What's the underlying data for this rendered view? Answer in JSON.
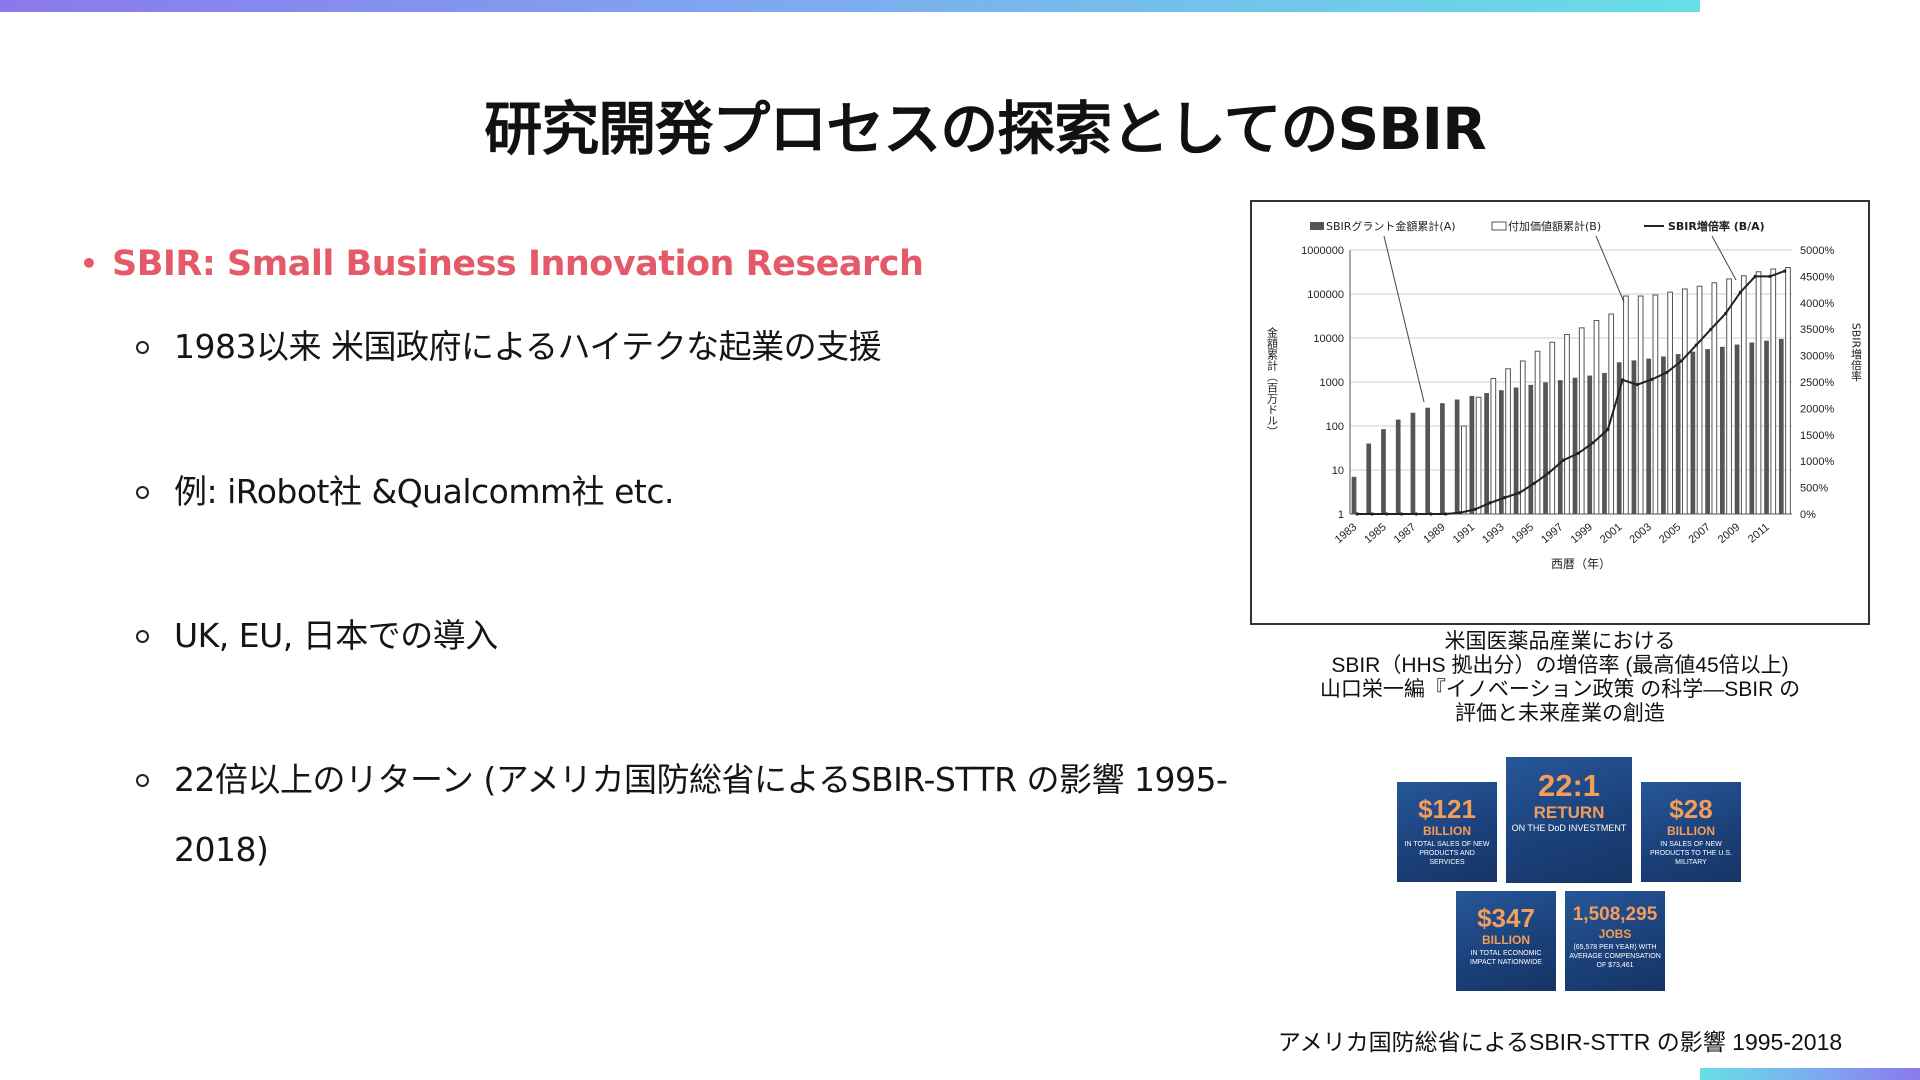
{
  "slide": {
    "title": "研究開発プロセスの探索としてのSBIR",
    "main_bullet": "SBIR: Small Business Innovation Research",
    "sub_bullets": [
      "1983以来 米国政府によるハイテクな起業の支援",
      "例: iRobot社 &Qualcomm社 etc.",
      "UK, EU, 日本での導入",
      "22倍以上のリターン (アメリカ国防総省によるSBIR-STTR の影響 1995-2018)"
    ],
    "caption_chart": [
      "米国医薬品産業における",
      "SBIR（HHS 拠出分）の増倍率 (最高値45倍以上)",
      "山口栄一編『イノベーション政策 の科学—SBIR の",
      "評価と未来産業の創造"
    ],
    "caption_infographic": "アメリカ国防総省によるSBIR-STTR の影響 1995-2018",
    "colors": {
      "accent": "#e55a68",
      "tile_blue": "#1f4a8a",
      "tile_orange": "#f29d5b"
    }
  },
  "infographic": {
    "tiles": [
      {
        "big": "$121",
        "unit": "BILLION",
        "desc": "IN TOTAL SALES OF NEW PRODUCTS AND SERVICES"
      },
      {
        "big": "22:1",
        "unit": "RETURN",
        "desc": "ON THE DoD INVESTMENT"
      },
      {
        "big": "$28",
        "unit": "BILLION",
        "desc": "IN SALES OF NEW PRODUCTS TO THE U.S. MILITARY"
      },
      {
        "big": "$347",
        "unit": "BILLION",
        "desc": "IN TOTAL ECONOMIC IMPACT NATIONWIDE"
      },
      {
        "big": "1,508,295",
        "unit": "JOBS",
        "desc": "(65,578 PER YEAR) WITH AVERAGE COMPENSATION OF $73,461"
      }
    ]
  },
  "chart_data": {
    "type": "bar",
    "title": "",
    "legend": [
      "SBIRグラント金額累計(A)",
      "付加価値額累計(B)",
      "SBIR増倍率 (B/A)"
    ],
    "legend_position": "top",
    "xlabel": "西暦（年）",
    "ylabel_left": "金額累計（百万ドル）",
    "ylabel_right": "SBIR増倍率",
    "x": [
      1983,
      1984,
      1985,
      1986,
      1987,
      1988,
      1989,
      1990,
      1991,
      1992,
      1993,
      1994,
      1995,
      1996,
      1997,
      1998,
      1999,
      2000,
      2001,
      2002,
      2003,
      2004,
      2005,
      2006,
      2007,
      2008,
      2009,
      2010,
      2011,
      2012
    ],
    "x_tick_labels": [
      "1983",
      "1985",
      "1987",
      "1989",
      "1991",
      "1993",
      "1995",
      "1997",
      "1999",
      "2001",
      "2003",
      "2005",
      "2007",
      "2009",
      "2011"
    ],
    "y_left_scale": "log",
    "y_left_ticks": [
      "1",
      "10",
      "100",
      "1000",
      "10000",
      "100000",
      "1000000"
    ],
    "y_left_lim": [
      1,
      1000000
    ],
    "y_right_ticks": [
      "0%",
      "500%",
      "1000%",
      "1500%",
      "2000%",
      "2500%",
      "3000%",
      "3500%",
      "4000%",
      "4500%",
      "5000%"
    ],
    "y_right_lim": [
      0,
      5000
    ],
    "series": [
      {
        "name": "SBIRグラント金額累計(A)",
        "kind": "bar",
        "color": "#555555",
        "values": [
          7,
          40,
          85,
          140,
          200,
          260,
          330,
          400,
          480,
          560,
          650,
          750,
          860,
          980,
          1100,
          1250,
          1400,
          1600,
          2800,
          3100,
          3400,
          3800,
          4300,
          4900,
          5600,
          6300,
          7100,
          7900,
          8700,
          9500
        ]
      },
      {
        "name": "付加価値額累計(B)",
        "kind": "bar",
        "color": "#ffffff",
        "values": [
          1,
          1,
          1,
          1,
          1,
          1,
          1,
          100,
          450,
          1200,
          2000,
          3000,
          5000,
          8000,
          12000,
          17000,
          25000,
          35000,
          90000,
          90000,
          95000,
          110000,
          130000,
          150000,
          180000,
          220000,
          260000,
          320000,
          370000,
          400000
        ]
      },
      {
        "name": "SBIR増倍率 (B/A)",
        "kind": "line",
        "color": "#222222",
        "values": [
          0,
          0,
          0,
          0,
          0,
          0,
          0,
          25,
          90,
          210,
          310,
          400,
          580,
          780,
          1020,
          1150,
          1350,
          1600,
          2540,
          2450,
          2550,
          2680,
          2900,
          3200,
          3500,
          3800,
          4200,
          4500,
          4500,
          4600
        ]
      }
    ]
  }
}
